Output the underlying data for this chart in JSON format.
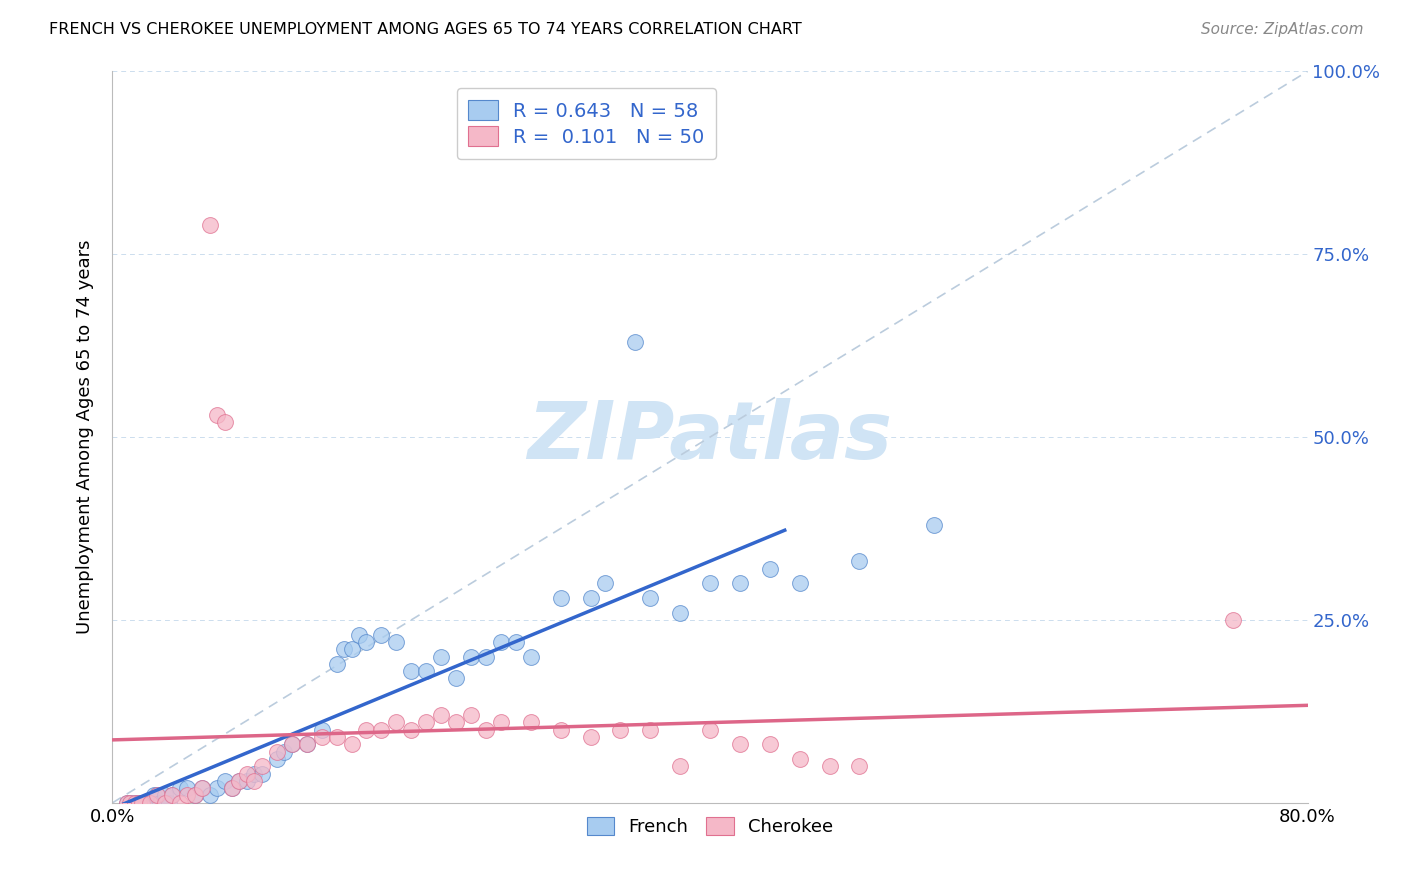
{
  "title": "FRENCH VS CHEROKEE UNEMPLOYMENT AMONG AGES 65 TO 74 YEARS CORRELATION CHART",
  "source": "Source: ZipAtlas.com",
  "ylabel": "Unemployment Among Ages 65 to 74 years",
  "xlim": [
    0,
    80
  ],
  "ylim": [
    0,
    100
  ],
  "french_R": 0.643,
  "french_N": 58,
  "cherokee_R": 0.101,
  "cherokee_N": 50,
  "french_fill": "#A8CCF0",
  "cherokee_fill": "#F5B8C8",
  "french_edge": "#5588CC",
  "cherokee_edge": "#E07090",
  "french_line": "#3366CC",
  "cherokee_line": "#DD6688",
  "ref_line_color": "#BBCCDD",
  "legend_R_N_color": "#3366CC",
  "watermark_color": "#D0E4F5",
  "legend_label_french": "French",
  "legend_label_cherokee": "Cherokee",
  "french_x": [
    1.0,
    1.2,
    1.5,
    1.8,
    2.0,
    2.2,
    2.5,
    2.8,
    3.0,
    3.2,
    3.5,
    3.8,
    4.0,
    4.5,
    5.0,
    5.5,
    6.0,
    6.5,
    7.0,
    7.5,
    8.0,
    8.5,
    9.0,
    9.5,
    10.0,
    11.0,
    11.5,
    12.0,
    13.0,
    14.0,
    15.0,
    15.5,
    16.0,
    16.5,
    17.0,
    18.0,
    19.0,
    20.0,
    21.0,
    22.0,
    23.0,
    24.0,
    25.0,
    26.0,
    27.0,
    28.0,
    30.0,
    32.0,
    33.0,
    35.0,
    36.0,
    38.0,
    40.0,
    42.0,
    44.0,
    46.0,
    50.0,
    55.0
  ],
  "french_y": [
    0,
    0,
    0,
    0,
    0,
    0,
    0,
    1,
    1,
    0,
    1,
    0,
    1,
    2,
    2,
    1,
    2,
    1,
    2,
    3,
    2,
    3,
    3,
    4,
    4,
    6,
    7,
    8,
    8,
    10,
    19,
    21,
    21,
    23,
    22,
    23,
    22,
    18,
    18,
    20,
    17,
    20,
    20,
    22,
    22,
    20,
    28,
    28,
    30,
    63,
    28,
    26,
    30,
    30,
    32,
    30,
    33,
    38
  ],
  "cherokee_x": [
    1.0,
    1.2,
    1.5,
    1.8,
    2.0,
    2.5,
    3.0,
    3.5,
    4.0,
    4.5,
    5.0,
    5.5,
    6.0,
    6.5,
    7.0,
    7.5,
    8.0,
    8.5,
    9.0,
    9.5,
    10.0,
    11.0,
    12.0,
    13.0,
    14.0,
    15.0,
    16.0,
    17.0,
    18.0,
    19.0,
    20.0,
    21.0,
    22.0,
    23.0,
    24.0,
    25.0,
    26.0,
    28.0,
    30.0,
    32.0,
    34.0,
    36.0,
    38.0,
    40.0,
    42.0,
    44.0,
    46.0,
    48.0,
    50.0,
    75.0
  ],
  "cherokee_y": [
    0,
    0,
    0,
    0,
    0,
    0,
    1,
    0,
    1,
    0,
    1,
    1,
    2,
    79,
    53,
    52,
    2,
    3,
    4,
    3,
    5,
    7,
    8,
    8,
    9,
    9,
    8,
    10,
    10,
    11,
    10,
    11,
    12,
    11,
    12,
    10,
    11,
    11,
    10,
    9,
    10,
    10,
    5,
    10,
    8,
    8,
    6,
    5,
    5,
    25
  ],
  "background_color": "#FFFFFF"
}
